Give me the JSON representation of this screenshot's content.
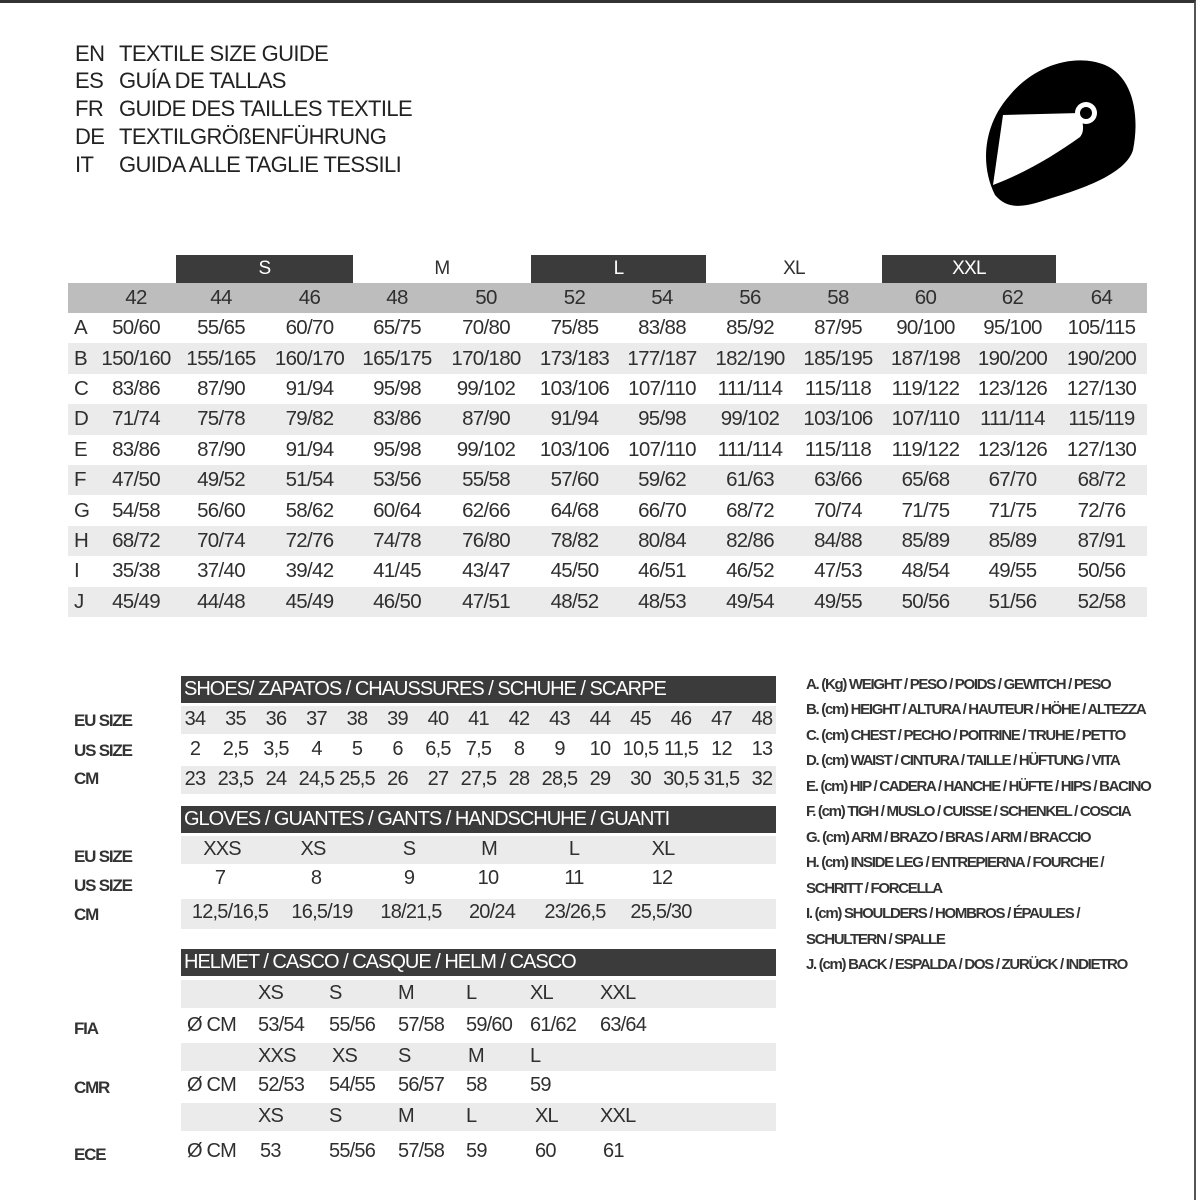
{
  "title": [
    {
      "code": "EN",
      "text": "TEXTILE SIZE GUIDE"
    },
    {
      "code": "ES",
      "text": "GUÍA DE TALLAS"
    },
    {
      "code": "FR",
      "text": "GUIDE DES TAILLES TEXTILE"
    },
    {
      "code": "DE",
      "text": "TEXTILGRÖßENFÜHRUNG"
    },
    {
      "code": "IT",
      "text": "GUIDA ALLE TAGLIE TESSILI"
    }
  ],
  "icon": "helmet-icon",
  "colors": {
    "bar": "#3b3b3b",
    "header_gray": "#bdbdbd",
    "stripe": "#ebebeb"
  },
  "textile": {
    "size_groups": [
      {
        "label": "S",
        "dark": true
      },
      {
        "label": "M",
        "dark": false
      },
      {
        "label": "L",
        "dark": true
      },
      {
        "label": "XL",
        "dark": false
      },
      {
        "label": "XXL",
        "dark": true
      }
    ],
    "columns": [
      "42",
      "44",
      "46",
      "48",
      "50",
      "52",
      "54",
      "56",
      "58",
      "60",
      "62",
      "64"
    ],
    "rows": [
      {
        "label": "A",
        "values": [
          "50/60",
          "55/65",
          "60/70",
          "65/75",
          "70/80",
          "75/85",
          "83/88",
          "85/92",
          "87/95",
          "90/100",
          "95/100",
          "105/115"
        ]
      },
      {
        "label": "B",
        "values": [
          "150/160",
          "155/165",
          "160/170",
          "165/175",
          "170/180",
          "173/183",
          "177/187",
          "182/190",
          "185/195",
          "187/198",
          "190/200",
          "190/200"
        ]
      },
      {
        "label": "C",
        "values": [
          "83/86",
          "87/90",
          "91/94",
          "95/98",
          "99/102",
          "103/106",
          "107/110",
          "111/114",
          "115/118",
          "119/122",
          "123/126",
          "127/130"
        ]
      },
      {
        "label": "D",
        "values": [
          "71/74",
          "75/78",
          "79/82",
          "83/86",
          "87/90",
          "91/94",
          "95/98",
          "99/102",
          "103/106",
          "107/110",
          "111/114",
          "115/119"
        ]
      },
      {
        "label": "E",
        "values": [
          "83/86",
          "87/90",
          "91/94",
          "95/98",
          "99/102",
          "103/106",
          "107/110",
          "111/114",
          "115/118",
          "119/122",
          "123/126",
          "127/130"
        ]
      },
      {
        "label": "F",
        "values": [
          "47/50",
          "49/52",
          "51/54",
          "53/56",
          "55/58",
          "57/60",
          "59/62",
          "61/63",
          "63/66",
          "65/68",
          "67/70",
          "68/72"
        ]
      },
      {
        "label": "G",
        "values": [
          "54/58",
          "56/60",
          "58/62",
          "60/64",
          "62/66",
          "64/68",
          "66/70",
          "68/72",
          "70/74",
          "71/75",
          "71/75",
          "72/76"
        ]
      },
      {
        "label": "H",
        "values": [
          "68/72",
          "70/74",
          "72/76",
          "74/78",
          "76/80",
          "78/82",
          "80/84",
          "82/86",
          "84/88",
          "85/89",
          "85/89",
          "87/91"
        ]
      },
      {
        "label": "I",
        "values": [
          "35/38",
          "37/40",
          "39/42",
          "41/45",
          "43/47",
          "45/50",
          "46/51",
          "46/52",
          "47/53",
          "48/54",
          "49/55",
          "50/56"
        ]
      },
      {
        "label": "J",
        "values": [
          "45/49",
          "44/48",
          "45/49",
          "46/50",
          "47/51",
          "48/52",
          "48/53",
          "49/54",
          "49/55",
          "50/56",
          "51/56",
          "52/58"
        ]
      }
    ]
  },
  "shoes": {
    "title": "SHOES/ ZAPATOS / CHAUSSURES / SCHUHE / SCARPE",
    "rows": [
      {
        "label": "EU SIZE",
        "values": [
          "34",
          "35",
          "36",
          "37",
          "38",
          "39",
          "40",
          "41",
          "42",
          "43",
          "44",
          "45",
          "46",
          "47",
          "48"
        ]
      },
      {
        "label": "US SIZE",
        "values": [
          "2",
          "2,5",
          "3,5",
          "4",
          "5",
          "6",
          "6,5",
          "7,5",
          "8",
          "9",
          "10",
          "10,5",
          "11,5",
          "12",
          "13"
        ]
      },
      {
        "label": "CM",
        "values": [
          "23",
          "23,5",
          "24",
          "24,5",
          "25,5",
          "26",
          "27",
          "27,5",
          "28",
          "28,5",
          "29",
          "30",
          "30,5",
          "31,5",
          "32"
        ]
      }
    ]
  },
  "gloves": {
    "title": "GLOVES / GUANTES / GANTS / HANDSCHUHE / GUANTI",
    "rows": [
      {
        "label": "EU SIZE",
        "values": [
          "XXS",
          "XS",
          "S",
          "M",
          "L",
          "XL"
        ]
      },
      {
        "label": "US SIZE",
        "values": [
          "7",
          "8",
          "9",
          "10",
          "11",
          "12"
        ]
      },
      {
        "label": "CM",
        "values": [
          "12,5/16,5",
          "16,5/19",
          "18/21,5",
          "20/24",
          "23/26,5",
          "25,5/30"
        ]
      }
    ]
  },
  "helmet": {
    "title": "HELMET / CASCO / CASQUE / HELM / CASCO",
    "unit": "Ø CM",
    "standards": [
      {
        "label": "FIA",
        "sizes": [
          "XS",
          "S",
          "M",
          "L",
          "XL",
          "XXL"
        ],
        "values": [
          "53/54",
          "55/56",
          "57/58",
          "59/60",
          "61/62",
          "63/64"
        ]
      },
      {
        "label": "CMR",
        "sizes": [
          "XXS",
          "XS",
          "S",
          "M",
          "L"
        ],
        "values": [
          "52/53",
          "54/55",
          "56/57",
          "58",
          "59"
        ]
      },
      {
        "label": "ECE",
        "sizes": [
          "XS",
          "S",
          "M",
          "L",
          "XL",
          "XXL"
        ],
        "values": [
          "53",
          "55/56",
          "57/58",
          "59",
          "60",
          "61"
        ]
      }
    ]
  },
  "legend": [
    "A. (Kg) WEIGHT / PESO / POIDS / GEWITCH / PESO",
    "B. (cm) HEIGHT / ALTURA / HAUTEUR / HÖHE / ALTEZZA",
    "C. (cm) CHEST / PECHO / POITRINE / TRUHE / PETTO",
    "D. (cm) WAIST / CINTURA / TAILLE / HÜFTUNG / VITA",
    "E. (cm) HIP / CADERA / HANCHE / HÜFTE / HIPS /  BACINO",
    "F.  (cm) TIGH / MUSLO / CUISSE / SCHENKEL / COSCIA",
    "G. (cm) ARM  / BRAZO / BRAS / ARM / BRACCIO",
    "H. (cm) INSIDE LEG / ENTREPIERNA / FOURCHE /",
    "SCHRITT / FORCELLA",
    "I.  (cm) SHOULDERS / HOMBROS / ÉPAULES /",
    "SCHULTERN / SPALLE",
    "J. (cm) BACK / ESPALDA / DOS / ZURÜCK / INDIETRO"
  ]
}
